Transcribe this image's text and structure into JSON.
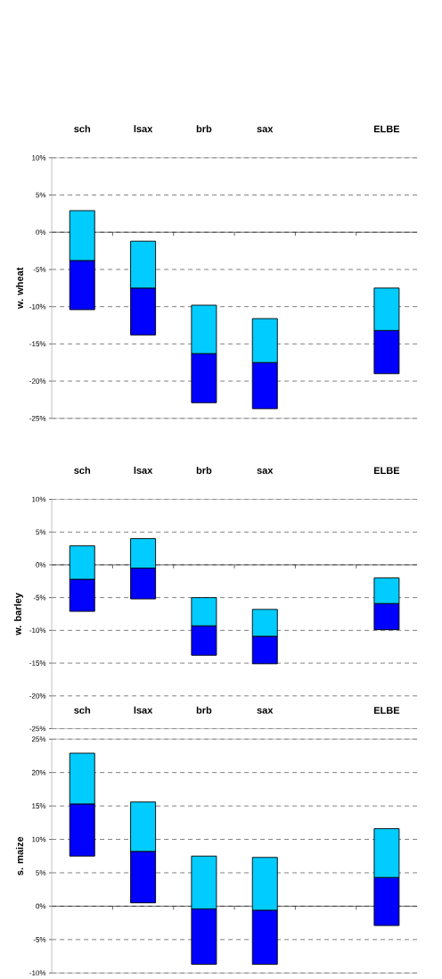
{
  "chart_data": [
    {
      "type": "bar",
      "ylabel": "w. wheat",
      "categories": [
        "sch",
        "lsax",
        "brb",
        "sax",
        null,
        "ELBE"
      ],
      "series": [
        {
          "color": "#0000ff",
          "base": [
            -10.4,
            -13.8,
            -22.9,
            -23.7,
            null,
            -19.0
          ],
          "values": [
            6.6,
            6.3,
            6.6,
            6.2,
            null,
            5.8
          ]
        },
        {
          "color": "#00ccff",
          "base": [
            -3.8,
            -7.5,
            -16.3,
            -17.5,
            null,
            -13.2
          ],
          "values": [
            6.7,
            6.3,
            6.5,
            5.9,
            null,
            5.7
          ]
        }
      ],
      "ylim": [
        -25,
        10
      ],
      "yticks": [
        {
          "value": -25,
          "label": "-25%"
        },
        {
          "value": -20,
          "label": "-20%"
        },
        {
          "value": -15,
          "label": "-15%"
        },
        {
          "value": -10,
          "label": "-10%"
        },
        {
          "value": -5,
          "label": "-5%"
        },
        {
          "value": 0,
          "label": "0%"
        },
        {
          "value": 5,
          "label": "5%"
        },
        {
          "value": 10,
          "label": "10%"
        }
      ],
      "grid": "y"
    },
    {
      "type": "bar",
      "ylabel": "w. barley",
      "categories": [
        "sch",
        "lsax",
        "brb",
        "sax",
        null,
        "ELBE"
      ],
      "series": [
        {
          "color": "#0000ff",
          "base": [
            -7.1,
            -5.2,
            -13.8,
            -15.1,
            null,
            -9.9
          ],
          "values": [
            4.9,
            4.7,
            4.5,
            4.2,
            null,
            4.0
          ]
        },
        {
          "color": "#00ccff",
          "base": [
            -2.2,
            -0.5,
            -9.3,
            -10.9,
            null,
            -5.9
          ],
          "values": [
            5.1,
            4.5,
            4.3,
            4.1,
            null,
            3.9
          ]
        }
      ],
      "ylim": [
        -25,
        10
      ],
      "yticks": [
        {
          "value": -25,
          "label": "-25%"
        },
        {
          "value": -20,
          "label": "-20%"
        },
        {
          "value": -15,
          "label": "-15%"
        },
        {
          "value": -10,
          "label": "-10%"
        },
        {
          "value": -5,
          "label": "-5%"
        },
        {
          "value": 0,
          "label": "0%"
        },
        {
          "value": 5,
          "label": "5%"
        },
        {
          "value": 10,
          "label": "10%"
        }
      ],
      "grid": "y"
    },
    {
      "type": "bar",
      "ylabel": "s. maize",
      "categories": [
        "sch",
        "lsax",
        "brb",
        "sax",
        null,
        "ELBE"
      ],
      "series": [
        {
          "color": "#0000ff",
          "base": [
            7.5,
            0.5,
            -8.7,
            -8.7,
            null,
            -2.9
          ],
          "values": [
            7.8,
            7.7,
            8.3,
            8.1,
            null,
            7.2
          ]
        },
        {
          "color": "#00ccff",
          "base": [
            15.3,
            8.2,
            -0.4,
            -0.6,
            null,
            4.3
          ],
          "values": [
            7.6,
            7.4,
            7.9,
            7.9,
            null,
            7.3
          ]
        }
      ],
      "ylim": [
        -10,
        25
      ],
      "yticks": [
        {
          "value": -10,
          "label": "-10%"
        },
        {
          "value": -5,
          "label": "-5%"
        },
        {
          "value": 0,
          "label": "0%"
        },
        {
          "value": 5,
          "label": "5%"
        },
        {
          "value": 10,
          "label": "10%"
        },
        {
          "value": 15,
          "label": "15%"
        },
        {
          "value": 20,
          "label": "20%"
        },
        {
          "value": 25,
          "label": "25%"
        }
      ],
      "grid": "y"
    }
  ]
}
